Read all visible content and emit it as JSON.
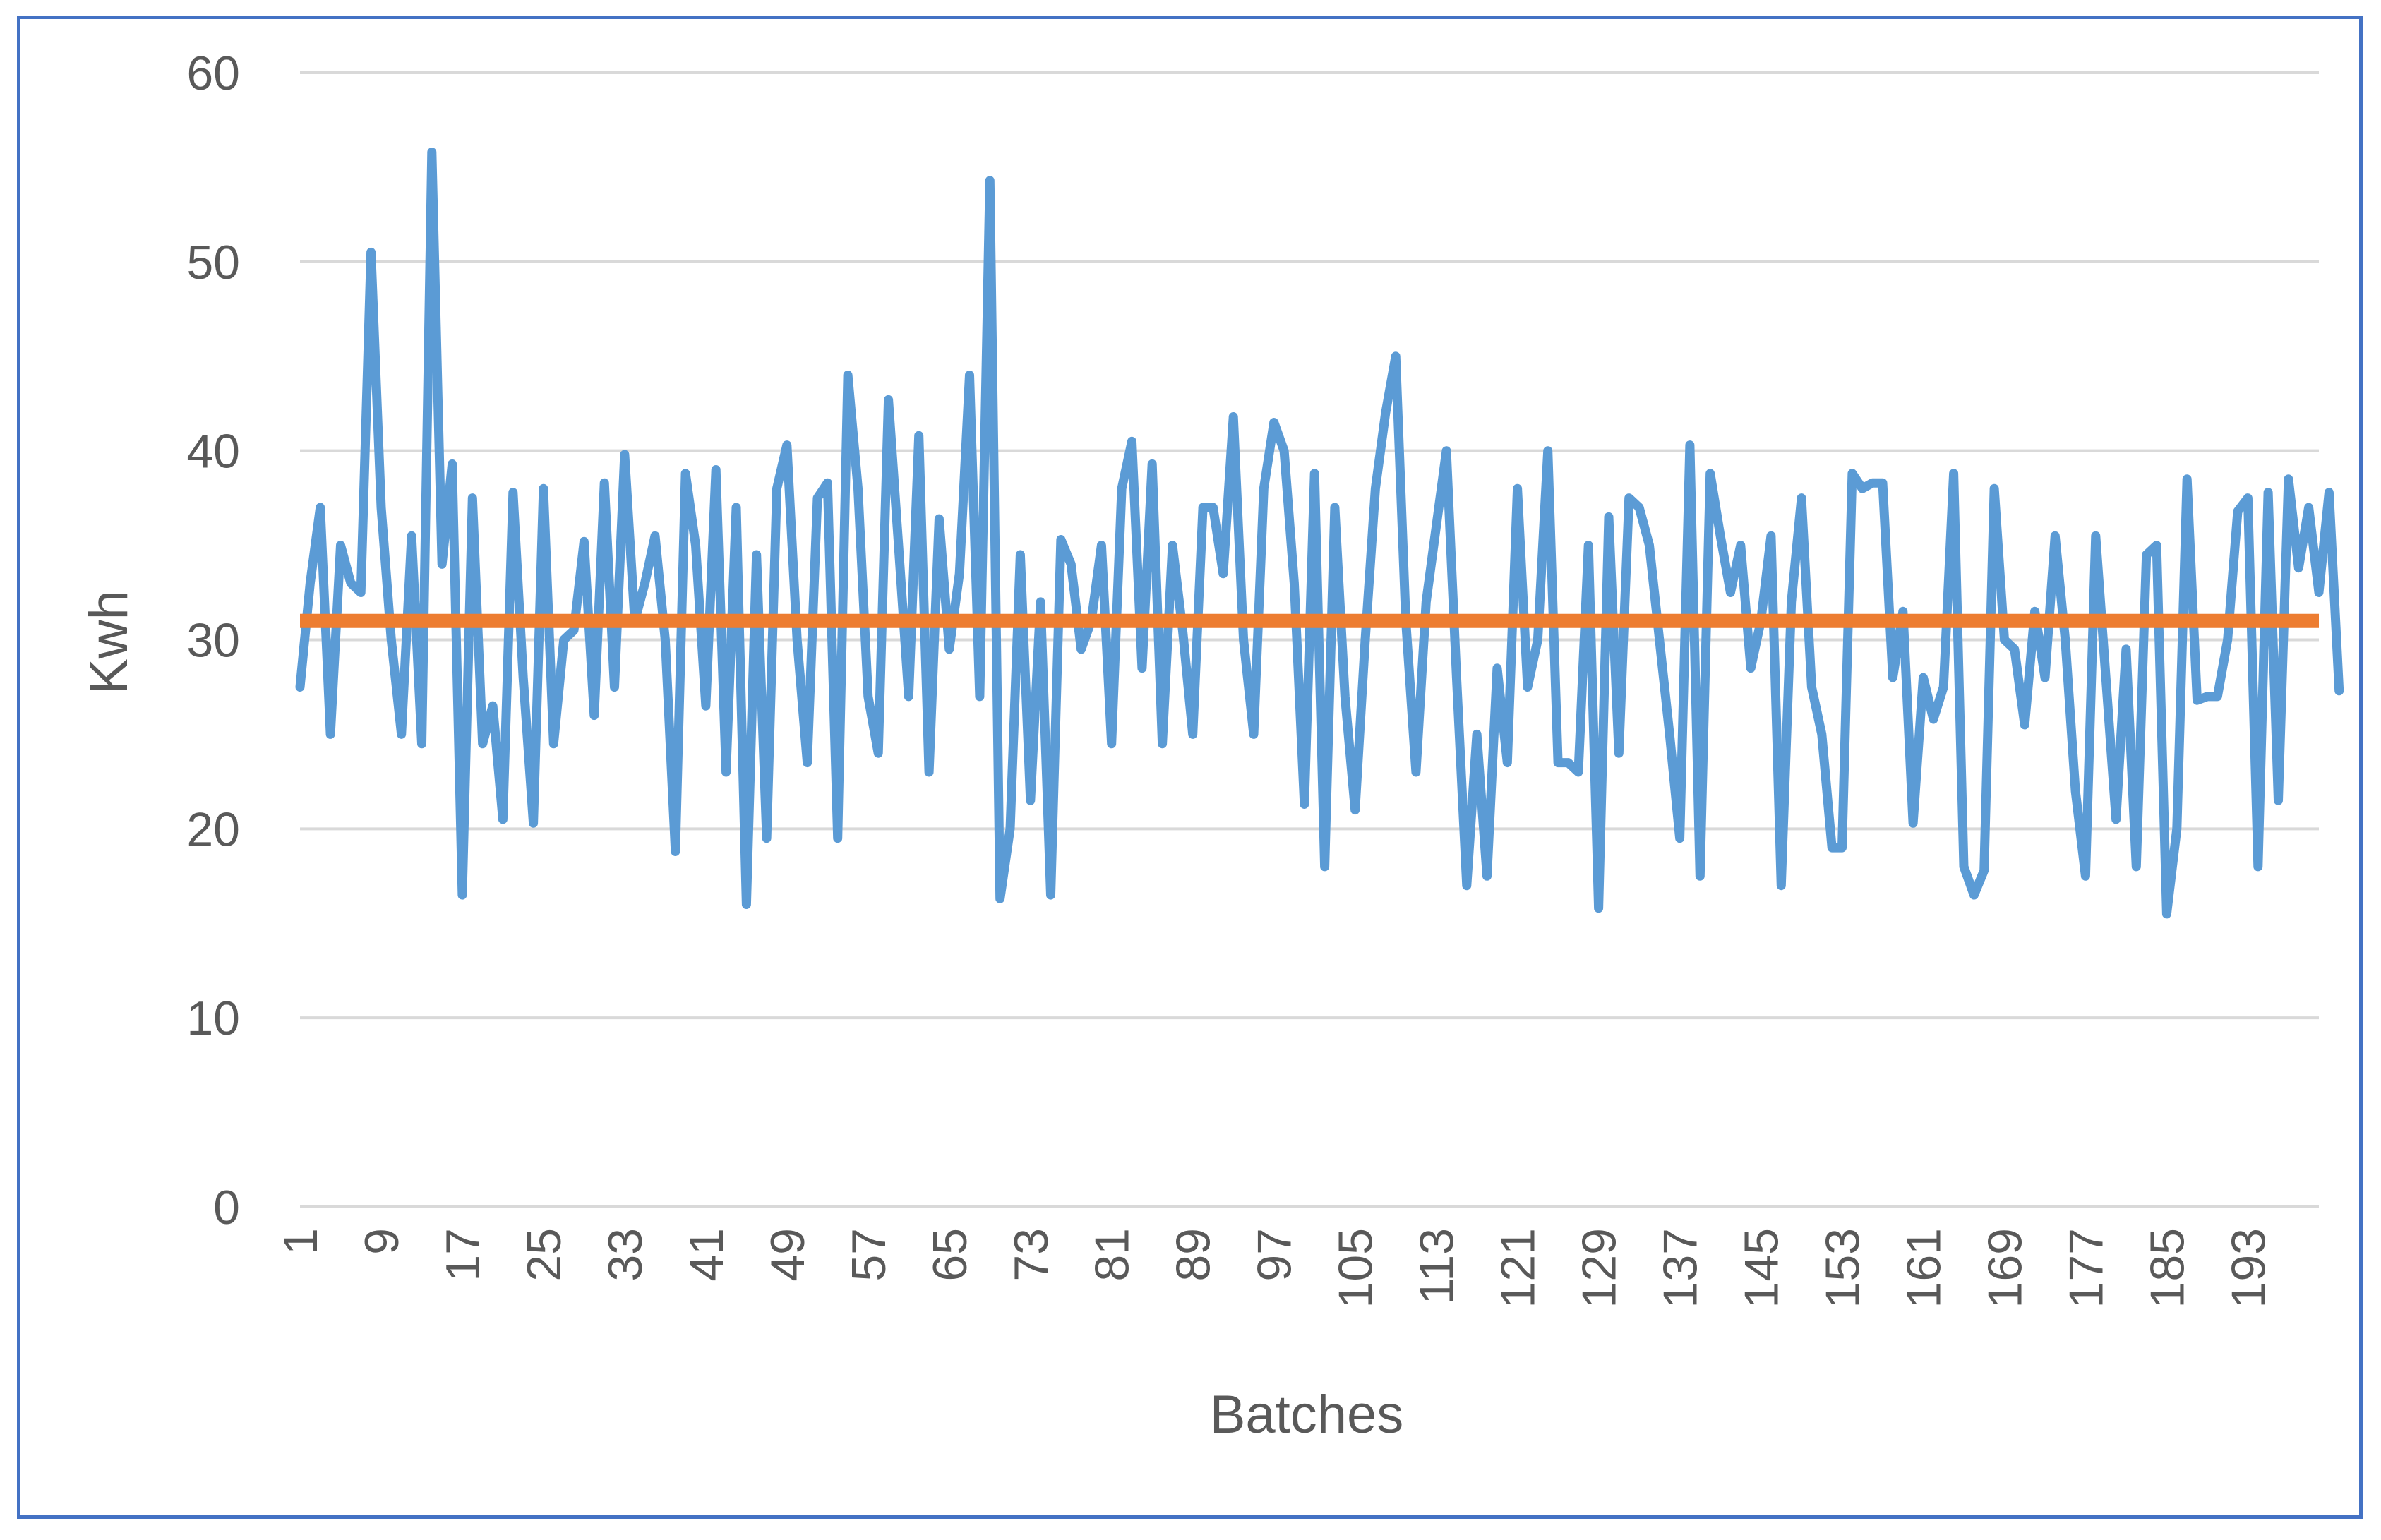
{
  "chart_data": {
    "type": "line",
    "xlabel": "Batches",
    "ylabel": "Kwh",
    "ylim": [
      0,
      60
    ],
    "yticks": [
      0,
      10,
      20,
      30,
      40,
      50,
      60
    ],
    "xlim": [
      1,
      200
    ],
    "xticks": [
      1,
      9,
      17,
      25,
      33,
      41,
      49,
      57,
      65,
      73,
      81,
      89,
      97,
      105,
      113,
      121,
      129,
      137,
      145,
      153,
      161,
      169,
      177,
      185,
      193
    ],
    "grid": true,
    "legend": "none",
    "colors": {
      "series": "#5B9BD5",
      "average": "#ED7D31",
      "grid": "#D9D9D9",
      "frame": "#4472C4"
    },
    "series": [
      {
        "values": [
          27.5,
          33,
          37,
          25,
          35,
          33,
          32.5,
          50.5,
          37,
          30,
          25,
          35.5,
          24.5,
          55.8,
          34,
          39.3,
          16.5,
          37.5,
          24.5,
          26.5,
          20.5,
          37.8,
          28,
          20.3,
          38,
          24.5,
          30,
          30.5,
          35.2,
          26,
          38.3,
          27.5,
          39.8,
          31,
          33,
          35.5,
          30,
          18.8,
          38.8,
          35,
          26.5,
          39,
          23,
          37,
          16,
          34.5,
          19.5,
          38,
          40.3,
          30,
          23.5,
          37.5,
          38.3,
          19.5,
          44,
          38,
          27,
          24,
          42.7,
          35,
          27,
          40.8,
          23,
          36.4,
          29.5,
          33.5,
          44,
          27,
          54.3,
          16.3,
          20,
          34.5,
          21.5,
          32,
          16.5,
          35.3,
          34,
          29.5,
          31,
          35,
          24.5,
          38,
          40.5,
          28.5,
          39.3,
          24.5,
          35,
          30.5,
          25,
          37,
          37,
          33.5,
          41.8,
          30,
          25,
          38,
          41.5,
          40,
          33,
          21.3,
          38.8,
          18,
          37,
          27,
          21,
          30,
          38,
          42,
          45,
          31,
          23,
          32,
          36,
          40,
          28,
          17,
          25,
          17.5,
          28.5,
          23.5,
          38,
          27.5,
          30,
          40,
          23.5,
          23.5,
          23,
          35,
          15.8,
          36.5,
          24,
          37.5,
          37,
          35,
          30,
          25,
          19.5,
          40.3,
          17.5,
          38.8,
          35.5,
          32.5,
          35,
          28.5,
          31,
          35.5,
          17,
          32,
          37.5,
          27.5,
          25,
          19,
          19,
          38.8,
          38,
          38.3,
          38.3,
          28,
          31.5,
          20.3,
          28,
          25.8,
          27.5,
          38.8,
          18,
          16.5,
          17.8,
          38,
          30,
          29.5,
          25.5,
          31.5,
          28,
          35.5,
          30,
          22,
          17.5,
          35.5,
          28,
          20.5,
          29.5,
          18,
          34.5,
          35,
          15.5,
          20,
          38.5,
          26.8,
          27,
          27,
          30,
          36.8,
          37.5,
          18,
          37.8,
          21.5,
          38.5,
          33.8,
          37,
          32.5,
          37.8,
          27.3
        ]
      },
      {
        "values": [
          31,
          31
        ]
      }
    ]
  }
}
